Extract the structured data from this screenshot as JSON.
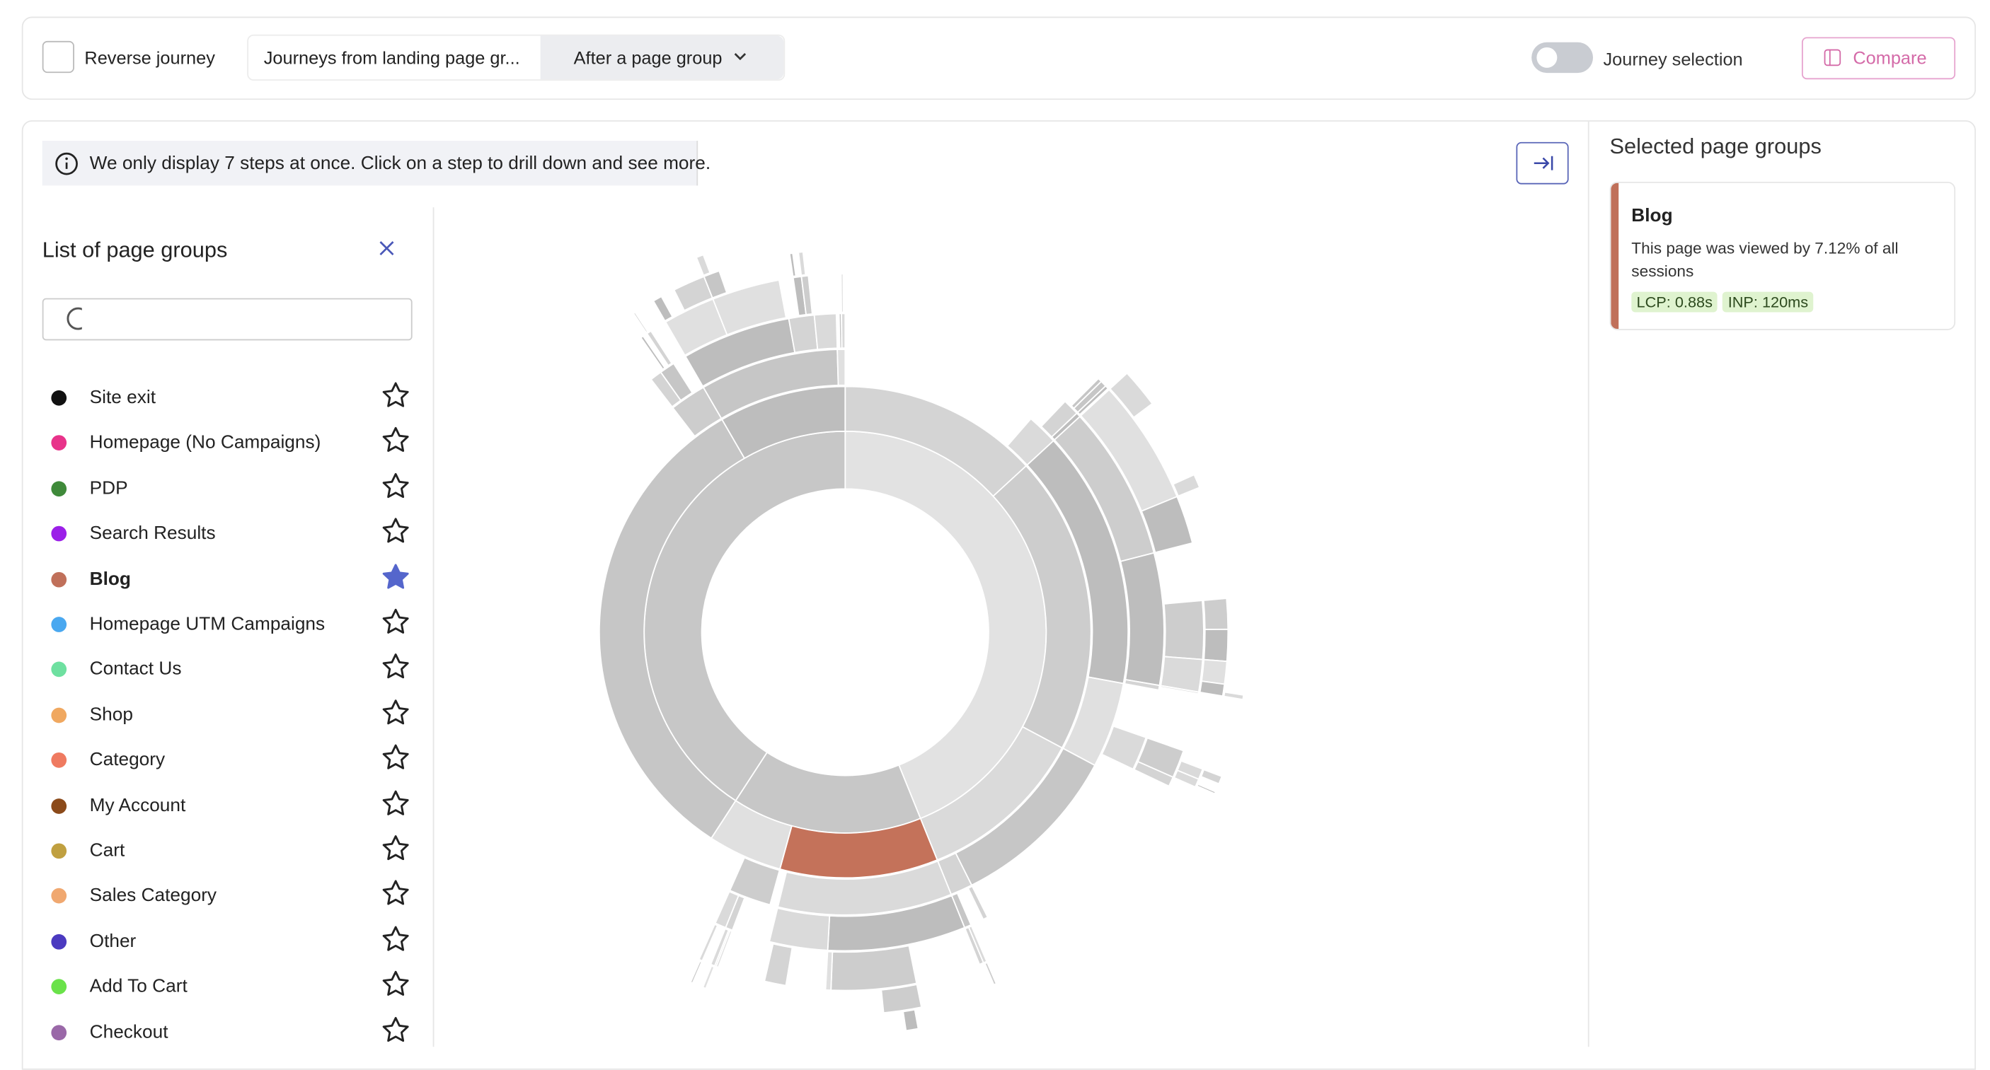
{
  "toolbar": {
    "reverse_journey": "Reverse journey",
    "journey_from": "Journeys from landing page gr...",
    "after": "After a page group",
    "journey_selection": "Journey selection",
    "compare": "Compare"
  },
  "notice": "We only display 7 steps at once. Click on a step to drill down and see more.",
  "sidebar": {
    "title": "List of page groups",
    "items": [
      {
        "name": "Site exit",
        "color": "#111111",
        "starred": false
      },
      {
        "name": "Homepage (No Campaigns)",
        "color": "#e8338a",
        "starred": false
      },
      {
        "name": "PDP",
        "color": "#3f8a3a",
        "starred": false
      },
      {
        "name": "Search Results",
        "color": "#9b1fe8",
        "starred": false
      },
      {
        "name": "Blog",
        "color": "#c0705a",
        "starred": true
      },
      {
        "name": "Homepage UTM Campaigns",
        "color": "#4aa8f0",
        "starred": false
      },
      {
        "name": "Contact Us",
        "color": "#6ee0a0",
        "starred": false
      },
      {
        "name": "Shop",
        "color": "#f0a860",
        "starred": false
      },
      {
        "name": "Category",
        "color": "#ef7a60",
        "starred": false
      },
      {
        "name": "My Account",
        "color": "#8b4a1a",
        "starred": false
      },
      {
        "name": "Cart",
        "color": "#c0a040",
        "starred": false
      },
      {
        "name": "Sales Category",
        "color": "#f0a870",
        "starred": false
      },
      {
        "name": "Other",
        "color": "#4b3ac0",
        "starred": false
      },
      {
        "name": "Add To Cart",
        "color": "#6ae24a",
        "starred": false
      },
      {
        "name": "Checkout",
        "color": "#9a68a8",
        "starred": false
      }
    ]
  },
  "selected": {
    "title": "Selected page groups",
    "card": {
      "name": "Blog",
      "description": "This page was viewed by 7.12% of all sessions",
      "badges": [
        "LCP: 0.88s",
        "INP: 120ms"
      ]
    }
  }
}
